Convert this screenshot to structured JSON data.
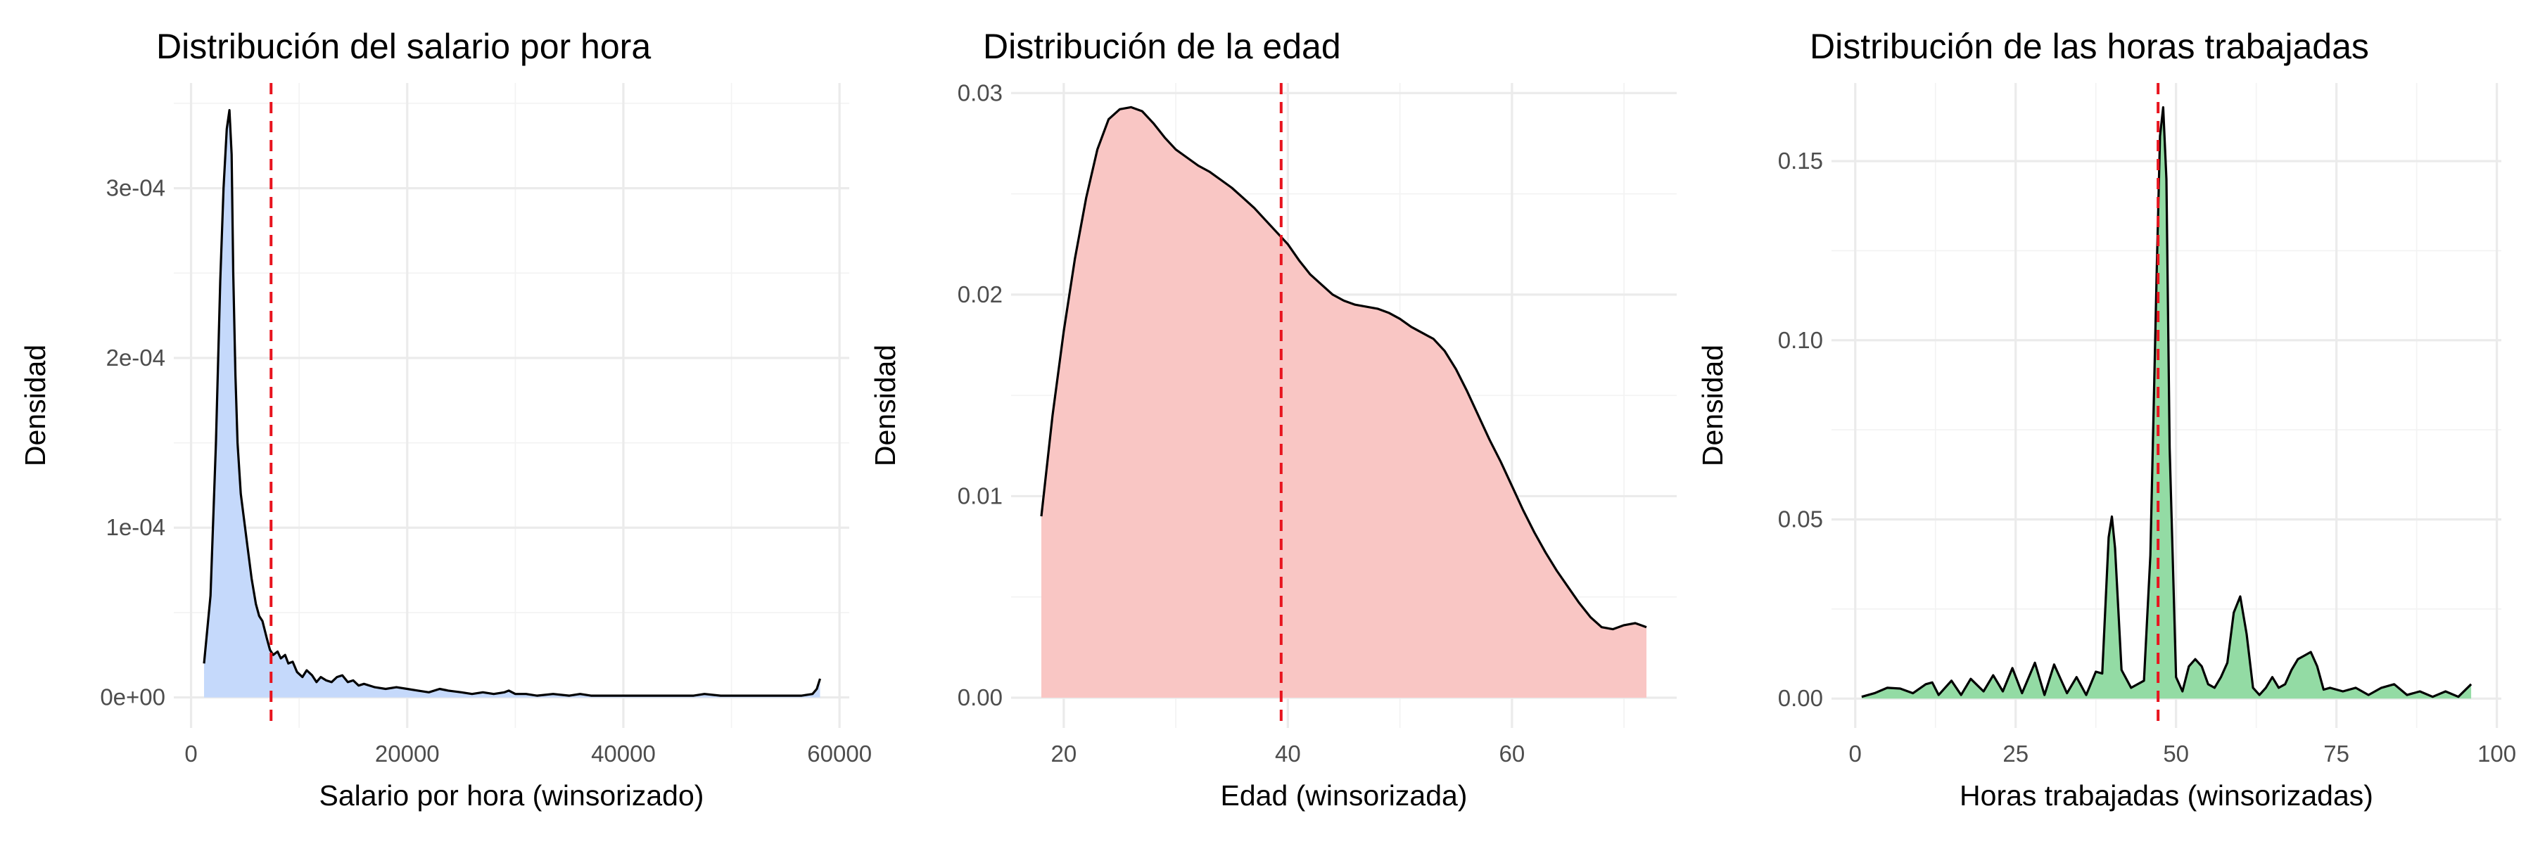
{
  "chart_data": [
    {
      "type": "area",
      "title": "Distribución del salario por hora",
      "xlabel": "Salario por hora (winsorizado)",
      "ylabel": "Densidad",
      "xlim": [
        -1600,
        60900
      ],
      "ylim": [
        -1.8e-05,
        0.000362
      ],
      "x_ticks": [
        0,
        20000,
        40000,
        60000
      ],
      "x_tick_labels": [
        "0",
        "20000",
        "40000",
        "60000"
      ],
      "y_ticks": [
        0,
        0.0001,
        0.0002,
        0.0003
      ],
      "y_tick_labels": [
        "0e+00",
        "1e-04",
        "2e-04",
        "3e-04"
      ],
      "grid": true,
      "fill_color": "#c5d9fb",
      "mean_line_color": "#e8141e",
      "mean_line_x": 7400,
      "series": [
        {
          "x": [
            1200,
            1800,
            2300,
            2700,
            3000,
            3300,
            3550,
            3750,
            3900,
            4100,
            4300,
            4600,
            4900,
            5200,
            5600,
            6000,
            6300,
            6600,
            7000,
            7300,
            7600,
            8000,
            8300,
            8700,
            9000,
            9400,
            9800,
            10300,
            10700,
            11200,
            11600,
            12000,
            12500,
            13000,
            13500,
            14000,
            14500,
            15000,
            15500,
            16000,
            17000,
            18000,
            19000,
            20000,
            21000,
            22000,
            23000,
            23800,
            25000,
            26000,
            27000,
            28000,
            29000,
            29400,
            30000,
            31000,
            32000,
            33500,
            35000,
            36000,
            37000,
            38000,
            39000,
            40500,
            42000,
            43500,
            45000,
            46500,
            47500,
            49000,
            50500,
            52000,
            53500,
            55000,
            56500,
            57500,
            57900,
            58200
          ],
          "y": [
            2e-05,
            6e-05,
            0.00015,
            0.000245,
            0.0003,
            0.000335,
            0.000346,
            0.00032,
            0.00025,
            0.00019,
            0.00015,
            0.00012,
            0.000105,
            9e-05,
            7e-05,
            5.5e-05,
            4.8e-05,
            4.5e-05,
            3.5e-05,
            2.8e-05,
            2.5e-05,
            2.7e-05,
            2.3e-05,
            2.5e-05,
            2e-05,
            2.1e-05,
            1.5e-05,
            1.2e-05,
            1.6e-05,
            1.3e-05,
            9e-06,
            1.2e-05,
            1e-05,
            9e-06,
            1.2e-05,
            1.3e-05,
            9e-06,
            1e-05,
            7e-06,
            8e-06,
            6e-06,
            5e-06,
            6e-06,
            5e-06,
            4e-06,
            3e-06,
            5e-06,
            4e-06,
            3e-06,
            2e-06,
            3e-06,
            2e-06,
            3e-06,
            4e-06,
            2e-06,
            2e-06,
            1e-06,
            2e-06,
            1e-06,
            2e-06,
            1e-06,
            1e-06,
            1e-06,
            1e-06,
            1e-06,
            1e-06,
            1e-06,
            1e-06,
            2e-06,
            1e-06,
            1e-06,
            1e-06,
            1e-06,
            1e-06,
            1e-06,
            2e-06,
            5e-06,
            1.1e-05
          ]
        }
      ]
    },
    {
      "type": "area",
      "title": "Distribución de la edad",
      "xlabel": "Edad (winsorizada)",
      "ylabel": "Densidad",
      "xlim": [
        15.3,
        74.7
      ],
      "ylim": [
        -0.0015,
        0.0305
      ],
      "x_ticks": [
        20,
        40,
        60
      ],
      "x_tick_labels": [
        "20",
        "40",
        "60"
      ],
      "y_ticks": [
        0,
        0.01,
        0.02,
        0.03
      ],
      "y_tick_labels": [
        "0.00",
        "0.01",
        "0.02",
        "0.03"
      ],
      "grid": true,
      "fill_color": "#f9c6c4",
      "mean_line_color": "#e8141e",
      "mean_line_x": 39.4,
      "series": [
        {
          "x": [
            18,
            19,
            20,
            21,
            22,
            23,
            24,
            25,
            26,
            27,
            28,
            29,
            30,
            31,
            32,
            33,
            34,
            35,
            36,
            37,
            38,
            39,
            40,
            41,
            42,
            43,
            44,
            45,
            46,
            47,
            48,
            49,
            50,
            51,
            52,
            53,
            54,
            55,
            56,
            57,
            58,
            59,
            60,
            61,
            62,
            63,
            64,
            65,
            66,
            67,
            68,
            69,
            70,
            71,
            72
          ],
          "y": [
            0.009,
            0.014,
            0.0182,
            0.0218,
            0.0248,
            0.0272,
            0.0287,
            0.0292,
            0.0293,
            0.0291,
            0.0285,
            0.0278,
            0.0272,
            0.0268,
            0.0264,
            0.0261,
            0.0257,
            0.0253,
            0.0248,
            0.0243,
            0.0237,
            0.0231,
            0.0225,
            0.0217,
            0.021,
            0.0205,
            0.02,
            0.0197,
            0.0195,
            0.0194,
            0.0193,
            0.0191,
            0.0188,
            0.0184,
            0.0181,
            0.0178,
            0.0172,
            0.0163,
            0.0152,
            0.014,
            0.0128,
            0.0117,
            0.0105,
            0.0093,
            0.0082,
            0.0072,
            0.0063,
            0.0055,
            0.0047,
            0.004,
            0.0035,
            0.0034,
            0.0036,
            0.0037,
            0.0035
          ]
        }
      ]
    },
    {
      "type": "area",
      "title": "Distribución de las horas trabajadas",
      "xlabel": "Horas trabajadas (winsorizadas)",
      "ylabel": "Densidad",
      "xlim": [
        -3.7,
        100.7
      ],
      "ylim": [
        -0.0082,
        0.1718
      ],
      "x_ticks": [
        0,
        25,
        50,
        75,
        100
      ],
      "x_tick_labels": [
        "0",
        "25",
        "50",
        "75",
        "100"
      ],
      "y_ticks": [
        0,
        0.05,
        0.1,
        0.15
      ],
      "y_tick_labels": [
        "0.00",
        "0.05",
        "0.10",
        "0.15"
      ],
      "grid": true,
      "fill_color": "#93dba4",
      "mean_line_color": "#e8141e",
      "mean_line_x": 47.2,
      "series": [
        {
          "x": [
            1,
            3,
            5,
            7,
            9,
            11,
            12,
            13,
            15,
            16.5,
            18,
            20,
            21.5,
            23,
            24.5,
            26,
            28,
            29.5,
            31,
            33,
            34.5,
            36,
            37.5,
            38.5,
            39.5,
            40,
            40.5,
            41.5,
            43,
            45,
            46,
            47,
            47.5,
            48,
            48.5,
            49,
            50,
            51,
            52,
            53,
            54,
            55,
            56,
            57,
            58,
            59,
            60,
            61,
            62,
            63,
            64,
            65,
            66,
            67,
            68,
            69,
            70,
            71,
            72,
            73,
            74,
            76,
            78,
            80,
            82,
            84,
            86,
            88,
            90,
            92,
            94,
            96
          ],
          "y": [
            0.0005,
            0.0015,
            0.003,
            0.0028,
            0.0015,
            0.004,
            0.0045,
            0.001,
            0.005,
            0.001,
            0.0055,
            0.002,
            0.0065,
            0.002,
            0.0085,
            0.0015,
            0.01,
            0.001,
            0.0095,
            0.0015,
            0.006,
            0.001,
            0.0075,
            0.007,
            0.045,
            0.0508,
            0.042,
            0.008,
            0.003,
            0.005,
            0.04,
            0.12,
            0.157,
            0.165,
            0.145,
            0.07,
            0.006,
            0.002,
            0.009,
            0.011,
            0.009,
            0.004,
            0.003,
            0.006,
            0.01,
            0.024,
            0.0285,
            0.018,
            0.003,
            0.001,
            0.003,
            0.006,
            0.003,
            0.004,
            0.008,
            0.011,
            0.012,
            0.013,
            0.009,
            0.0025,
            0.003,
            0.002,
            0.003,
            0.001,
            0.003,
            0.004,
            0.001,
            0.002,
            0.0005,
            0.002,
            0.0005,
            0.004
          ]
        }
      ]
    }
  ]
}
